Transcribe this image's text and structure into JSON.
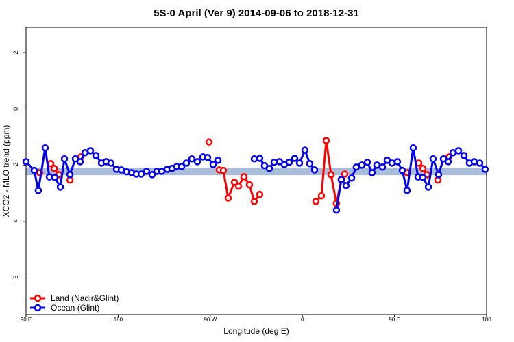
{
  "chart_data": {
    "type": "line",
    "title": "5S-0 April (Ver 9)   2014-09-06 to 2018-12-31",
    "x_label": "Longitude (deg E)",
    "y_label": "XCO2 - MLO trend (ppm)",
    "xlim": [
      90,
      540
    ],
    "xticks": [
      {
        "value": 90,
        "label": "90 E"
      },
      180,
      {
        "value": 270,
        "label": "90 W"
      },
      {
        "value": 360,
        "label": "0"
      },
      {
        "value": 450,
        "label": "90 E"
      },
      {
        "value": 540,
        "label": "180"
      }
    ],
    "ylim": [
      -7.3,
      2.9
    ],
    "yticks": [
      2,
      0,
      -2,
      -4,
      -6
    ],
    "band": [
      -2.35,
      -2.08
    ],
    "band_color": "#a9bddb",
    "legend": "bottom-left",
    "series": [
      {
        "name": "Land (Nadir&Glint)",
        "color": "#ff0000",
        "x": [
          103.4,
          105,
          114.1,
          117.5,
          122.1,
          125,
          132.9,
          135,
          143.6,
          145,
          268.8,
          270,
          278.8,
          282.8,
          287.5,
          293.6,
          297.6,
          302.9,
          308.3,
          313.0,
          318.3,
          330,
          373.2,
          378.6,
          383.3,
          388.0,
          393.3,
          398.0,
          401.4,
          420,
          462.3,
          465,
          473.7,
          477.7,
          481.7,
          485,
          492.4,
          495,
          503.1
        ],
        "values": [
          -2.26,
          null,
          -1.94,
          -2.11,
          -2.33,
          null,
          -2.52,
          null,
          -1.7,
          null,
          -1.17,
          null,
          -2.16,
          -2.18,
          -3.16,
          -2.6,
          -2.74,
          -2.4,
          -2.69,
          -3.28,
          -3.03,
          null,
          -3.28,
          -3.08,
          -1.12,
          -2.33,
          -3.35,
          -2.52,
          -2.31,
          null,
          -2.26,
          null,
          -1.92,
          -2.11,
          -2.33,
          null,
          -2.52,
          null,
          -1.7
        ]
      },
      {
        "name": "Ocean (Glint)",
        "color": "#0000ee",
        "x": [
          90,
          98,
          102,
          108.7,
          112.8,
          118.1,
          123.5,
          127.5,
          132.9,
          138.2,
          142.9,
          147.6,
          152.9,
          158.3,
          163.7,
          168.3,
          173.0,
          178.4,
          183.1,
          188.4,
          193.1,
          197.8,
          202.5,
          207.8,
          213.2,
          217.9,
          222.6,
          227.9,
          232.6,
          237.3,
          242.0,
          246.7,
          252.0,
          257.4,
          262.8,
          267.4,
          272.8,
          277.5,
          300,
          313.0,
          318.3,
          323.0,
          327.7,
          332.4,
          337.7,
          342.4,
          347.1,
          352.5,
          357.2,
          362.5,
          367.2,
          371.9,
          380,
          393.3,
          398.0,
          402.7,
          408.1,
          412.7,
          418.1,
          423.5,
          428.1,
          432.8,
          438.2,
          442.9,
          447.6,
          452.9,
          457.6,
          462.3,
          468.3,
          473.0,
          477.7,
          483.1,
          487.7,
          493.1,
          497.8,
          502.5,
          507.2,
          512.5,
          517.9,
          523.2,
          527.9,
          533.3,
          538.6
        ],
        "values": [
          -1.87,
          -2.18,
          -2.89,
          -1.38,
          -2.41,
          -2.43,
          -2.77,
          -1.77,
          -2.33,
          -1.77,
          -1.87,
          -1.55,
          -1.48,
          -1.65,
          -1.92,
          -1.87,
          -1.92,
          -2.14,
          -2.16,
          -2.23,
          -2.26,
          -2.31,
          -2.31,
          -2.21,
          -2.33,
          -2.21,
          -2.21,
          -2.14,
          -2.11,
          -2.04,
          -2.04,
          -1.92,
          -1.77,
          -1.87,
          -1.7,
          -1.72,
          -1.97,
          -1.82,
          null,
          -1.77,
          -1.75,
          -2.01,
          -2.11,
          -1.89,
          -1.87,
          -1.97,
          -1.89,
          -1.75,
          -1.92,
          -1.46,
          -1.94,
          -2.16,
          null,
          -3.59,
          -2.5,
          -2.72,
          -2.45,
          -2.06,
          -1.99,
          -1.89,
          -2.26,
          -1.99,
          -2.06,
          -1.82,
          -1.92,
          -1.87,
          -2.18,
          -2.89,
          -1.38,
          -2.41,
          -2.43,
          -2.77,
          -1.77,
          -2.33,
          -1.77,
          -1.87,
          -1.55,
          -1.48,
          -1.65,
          -1.92,
          -1.87,
          -1.92,
          -2.14
        ]
      }
    ]
  }
}
